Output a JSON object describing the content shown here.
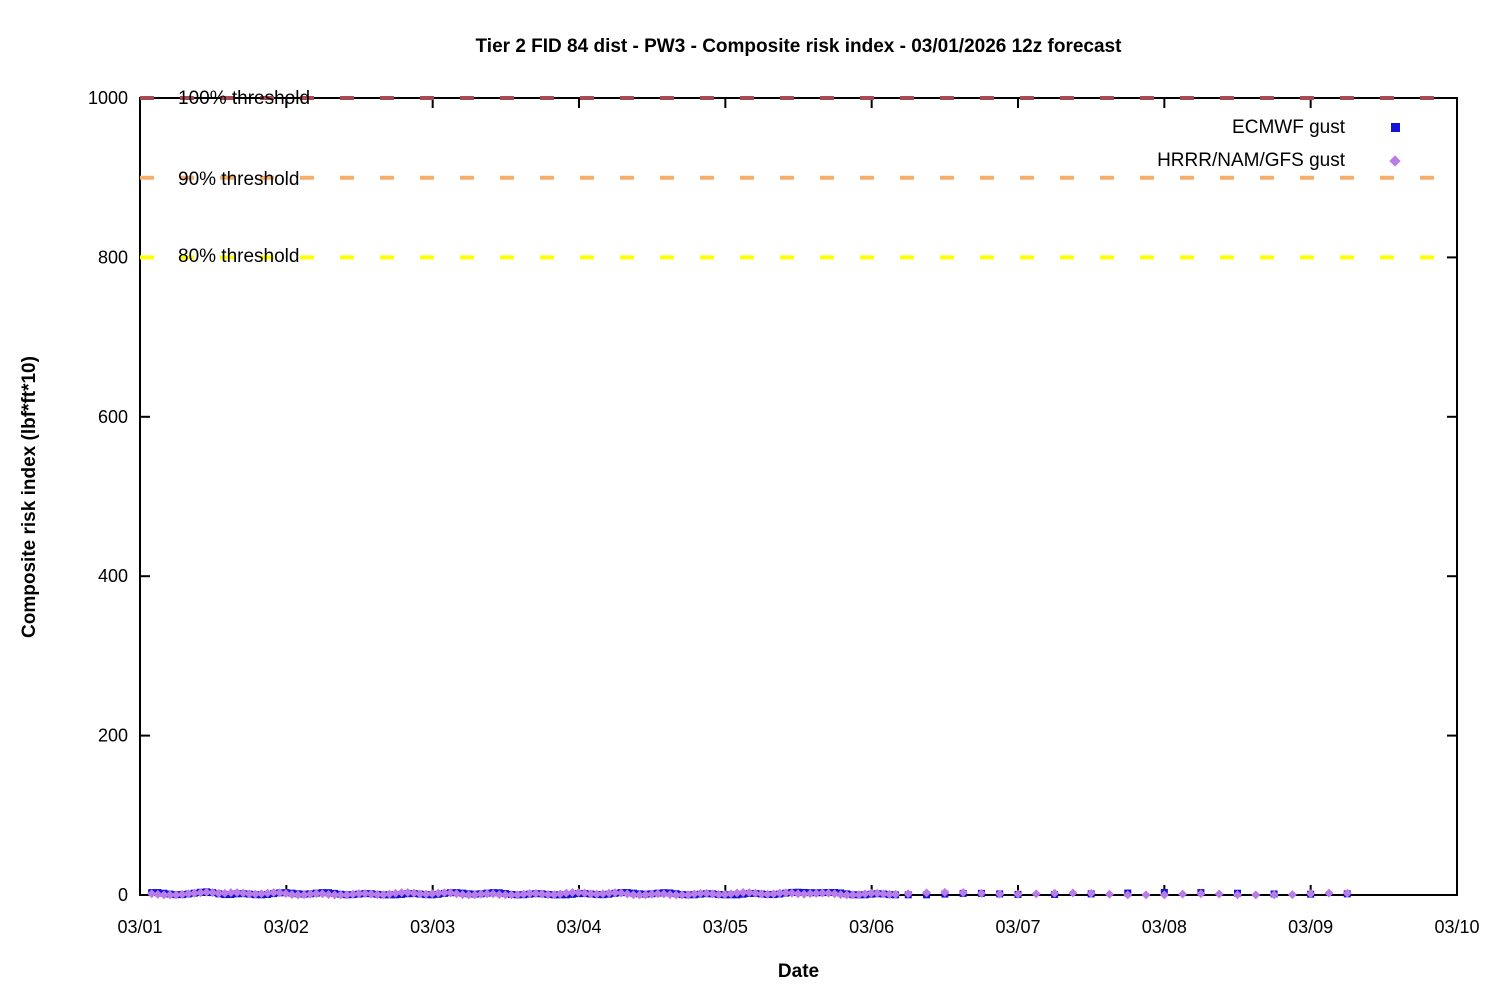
{
  "chart_data": {
    "type": "scatter",
    "title": "Tier 2 FID 84 dist - PW3 - Composite risk index - 03/01/2026 12z forecast",
    "xlabel": "Date",
    "ylabel": "Composite risk index (lbf*ft*10)",
    "x_tick_labels": [
      "03/01",
      "03/02",
      "03/03",
      "03/04",
      "03/05",
      "03/06",
      "03/07",
      "03/08",
      "03/09",
      "03/10"
    ],
    "x_range_days": [
      0,
      9
    ],
    "ylim": [
      0,
      1000
    ],
    "y_ticks": [
      0,
      200,
      400,
      600,
      800,
      1000
    ],
    "grid": false,
    "legend_position": "top-right-inside",
    "axis_color": "#000000",
    "thresholds": [
      {
        "label": "100% threshold",
        "value": 1000,
        "color": "#a84a55",
        "style": "dashed"
      },
      {
        "label": "90% threshold",
        "value": 900,
        "color": "#f6ae6c",
        "style": "dashed"
      },
      {
        "label": "80% threshold",
        "value": 800,
        "color": "#ffff00",
        "style": "dashed"
      }
    ],
    "series": [
      {
        "name": "ECMWF gust",
        "marker": "square",
        "color": "#1313d6",
        "values_description": "all points near zero (approx 0-8 lbf*ft*10)",
        "segments": [
          {
            "start_day": 0.08,
            "end_day": 5.18,
            "step_hours": 1
          },
          {
            "start_day": 5.25,
            "end_day": 6.0,
            "step_hours": 3
          },
          {
            "start_day": 6.25,
            "end_day": 8.26,
            "step_hours": 6
          }
        ]
      },
      {
        "name": "HRRR/NAM/GFS gust",
        "marker": "diamond",
        "color": "#b97ce8",
        "values_description": "all points near zero (approx 0-8 lbf*ft*10)",
        "segments": [
          {
            "start_day": 0.08,
            "end_day": 5.18,
            "step_hours": 1
          },
          {
            "start_day": 5.25,
            "end_day": 8.26,
            "step_hours": 3
          }
        ]
      }
    ]
  }
}
